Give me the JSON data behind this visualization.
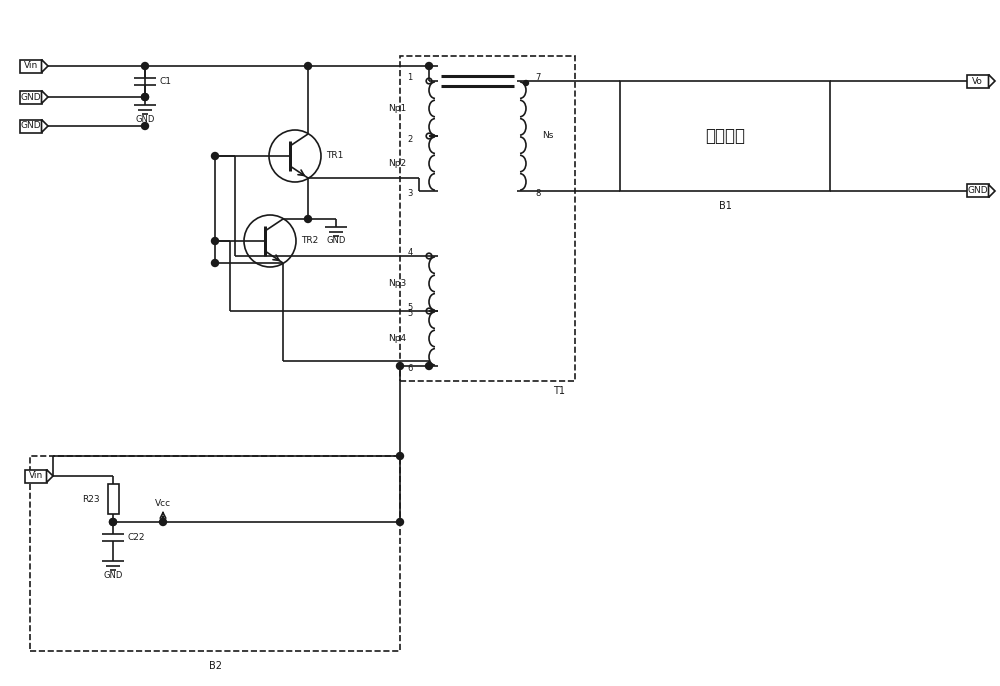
{
  "bg_color": "#ffffff",
  "line_color": "#1a1a1a",
  "line_width": 1.2,
  "figsize": [
    10,
    6.86
  ],
  "dpi": 100,
  "xlim": [
    0,
    100
  ],
  "ylim": [
    0,
    68.6
  ]
}
